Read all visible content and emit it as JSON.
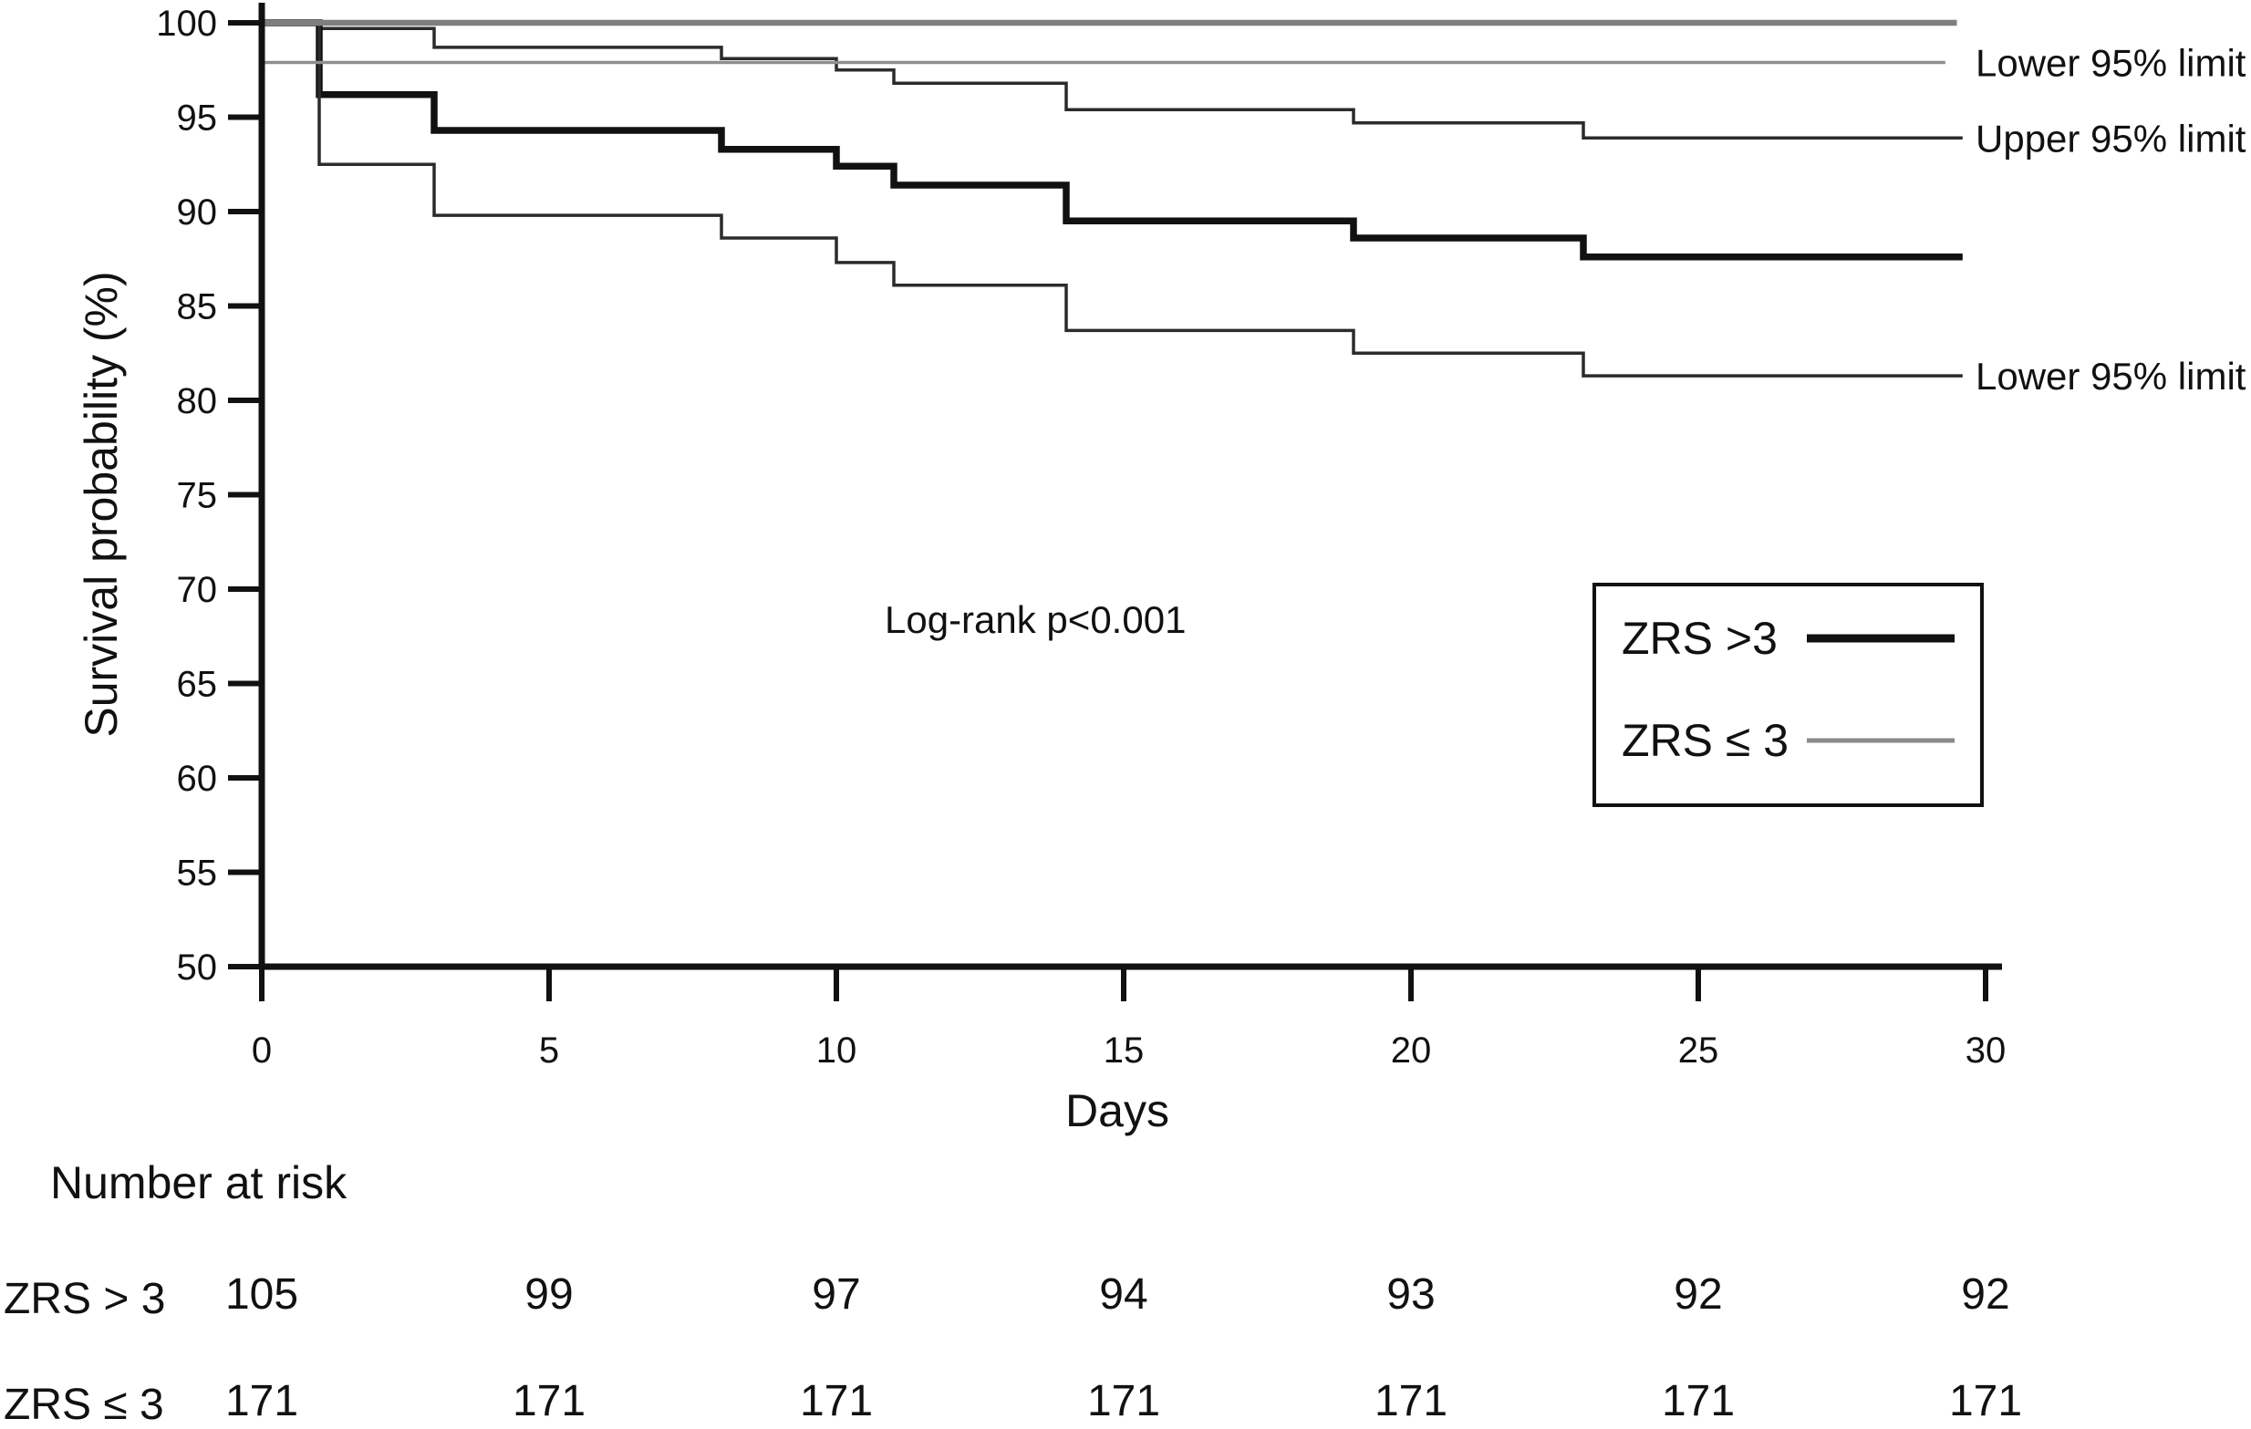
{
  "chart_data": {
    "type": "line",
    "subtype": "kaplan-meier-step",
    "title": "",
    "xlabel": "Days",
    "ylabel": "Survival probability (%)",
    "xlim": [
      0,
      30
    ],
    "ylim": [
      50,
      100
    ],
    "x_ticks": [
      0,
      5,
      10,
      15,
      20,
      25,
      30
    ],
    "y_ticks": [
      100,
      95,
      90,
      85,
      80,
      75,
      70,
      65,
      60,
      55,
      50
    ],
    "grid": false,
    "annotation": "Log-rank p<0.001",
    "colors": {
      "black": "#111111",
      "ci_black": "#2b2b2b",
      "gray": "#7f7f7f",
      "light_gray": "#8f8f8f"
    },
    "series": [
      {
        "name": "ZRS >3 upper 95% limit",
        "role": "ci-upper",
        "color": "#2b2b2b",
        "width": 3.5,
        "end_day": 29.6,
        "points": [
          [
            0,
            100
          ],
          [
            1,
            99.7
          ],
          [
            3,
            98.7
          ],
          [
            8,
            98.1
          ],
          [
            10,
            97.5
          ],
          [
            11,
            96.8
          ],
          [
            14,
            95.4
          ],
          [
            19,
            94.7
          ],
          [
            23,
            93.9
          ]
        ]
      },
      {
        "name": "ZRS >3",
        "role": "estimate",
        "color": "#111111",
        "width": 7.5,
        "end_day": 29.6,
        "points": [
          [
            0,
            100
          ],
          [
            1,
            96.2
          ],
          [
            3,
            94.3
          ],
          [
            8,
            93.3
          ],
          [
            10,
            92.4
          ],
          [
            11,
            91.4
          ],
          [
            14,
            89.5
          ],
          [
            19,
            88.6
          ],
          [
            23,
            87.6
          ]
        ]
      },
      {
        "name": "ZRS >3 lower 95% limit",
        "role": "ci-lower",
        "color": "#2b2b2b",
        "width": 3.5,
        "end_day": 29.6,
        "points": [
          [
            0,
            100
          ],
          [
            1,
            92.5
          ],
          [
            3,
            89.8
          ],
          [
            8,
            88.6
          ],
          [
            10,
            87.3
          ],
          [
            11,
            86.1
          ],
          [
            14,
            83.7
          ],
          [
            19,
            82.5
          ],
          [
            23,
            81.3
          ]
        ]
      },
      {
        "name": "ZRS ≤ 3",
        "role": "estimate",
        "color": "#7f7f7f",
        "width": 6.5,
        "end_day": 29.5,
        "points": [
          [
            0,
            100
          ]
        ]
      },
      {
        "name": "ZRS ≤ 3 lower 95% limit",
        "role": "ci-lower",
        "color": "#8f8f8f",
        "width": 3.5,
        "end_day": 29.3,
        "points": [
          [
            0,
            97.9
          ]
        ]
      }
    ],
    "right_labels": [
      {
        "text": "Lower 95% limit",
        "at_value": 97.9
      },
      {
        "text": "Upper 95% limit",
        "at_value": 93.9
      },
      {
        "text": "Lower 95% limit",
        "at_value": 81.3
      }
    ],
    "legend": {
      "position": "right-middle",
      "items": [
        {
          "label": "ZRS >3",
          "line_color": "#111111",
          "line_width": 9
        },
        {
          "label": "ZRS ≤ 3",
          "line_color": "#8a8a8a",
          "line_width": 5
        }
      ]
    }
  },
  "risk_table": {
    "title": "Number at risk",
    "columns": [
      0,
      5,
      10,
      15,
      20,
      25,
      30
    ],
    "rows": [
      {
        "label": "ZRS > 3",
        "values": [
          105,
          99,
          97,
          94,
          93,
          92,
          92
        ]
      },
      {
        "label": "ZRS ≤ 3",
        "values": [
          171,
          171,
          171,
          171,
          171,
          171,
          171
        ]
      }
    ]
  }
}
